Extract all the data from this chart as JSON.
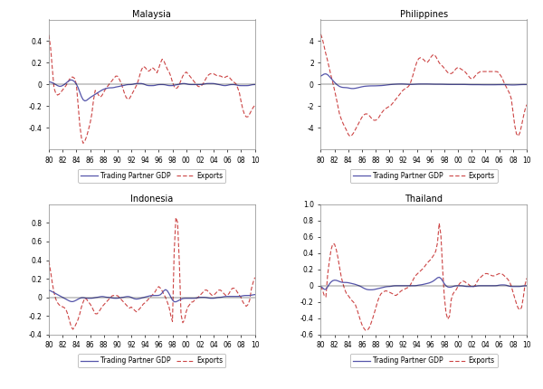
{
  "panels": [
    {
      "title": "Malaysia",
      "ylim": [
        -0.6,
        0.6
      ],
      "yticks": [
        -0.4,
        -0.2,
        0.0,
        0.2,
        0.4
      ],
      "xtick_labels": [
        "80",
        "82",
        "84",
        "86",
        "88",
        "90",
        "92",
        "94",
        "96",
        "98",
        "00",
        "02",
        "04",
        "06",
        "08",
        "10"
      ]
    },
    {
      "title": "Philippines",
      "ylim": [
        -6,
        6
      ],
      "yticks": [
        -4,
        -2,
        0,
        2,
        4
      ],
      "xtick_labels": [
        "80",
        "82",
        "84",
        "86",
        "88",
        "90",
        "92",
        "94",
        "96",
        "98",
        "00",
        "02",
        "04",
        "06",
        "08",
        "10"
      ]
    },
    {
      "title": "Indonesia",
      "ylim": [
        -0.4,
        1.0
      ],
      "yticks": [
        -0.4,
        -0.2,
        0.0,
        0.2,
        0.4,
        0.6,
        0.8
      ],
      "xtick_labels": [
        "80",
        "82",
        "84",
        "86",
        "88",
        "90",
        "92",
        "94",
        "96",
        "98",
        "00",
        "02",
        "04",
        "06",
        "08",
        "10"
      ]
    },
    {
      "title": "Thailand",
      "ylim": [
        -0.6,
        1.0
      ],
      "yticks": [
        -0.6,
        -0.4,
        -0.2,
        0.0,
        0.2,
        0.4,
        0.6,
        0.8,
        1.0
      ],
      "xtick_labels": [
        "80",
        "82",
        "84",
        "86",
        "88",
        "90",
        "92",
        "94",
        "96",
        "98",
        "00",
        "02",
        "04",
        "06",
        "08",
        "10"
      ]
    }
  ],
  "gdp_color": "#5555aa",
  "exports_color": "#cc4444",
  "legend_labels": [
    "Trading Partner GDP",
    "Exports"
  ],
  "figsize": [
    6.0,
    4.3
  ],
  "dpi": 100
}
